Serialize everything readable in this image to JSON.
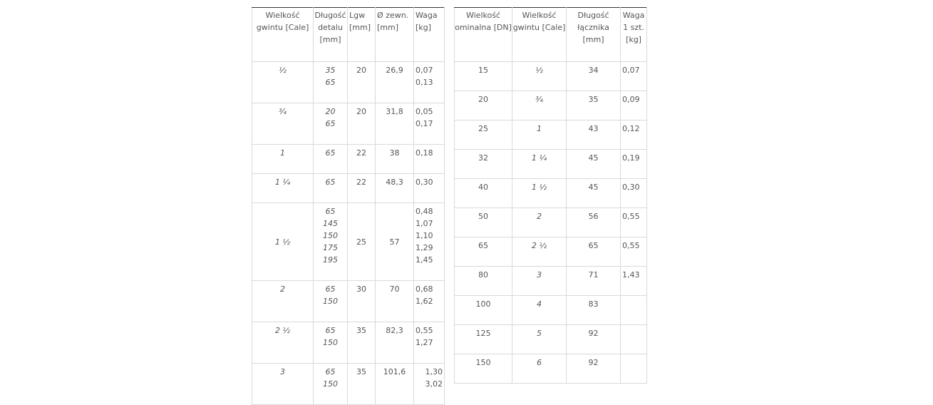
{
  "table1": {
    "headers": [
      "Wielkość gwintu [Cale]",
      "Długość detalu [mm]",
      "Lgw [mm]",
      "Ø zewn. [mm]",
      "Waga [kg]"
    ],
    "rows": [
      {
        "size": "½",
        "lengths": [
          "35",
          "65"
        ],
        "lgw": "20",
        "od": "26,9",
        "weights": [
          "0,07",
          "0,13"
        ]
      },
      {
        "size": "¾",
        "lengths": [
          "20",
          "65"
        ],
        "lgw": "20",
        "od": "31,8",
        "weights": [
          "0,05",
          "0,17"
        ]
      },
      {
        "size": "1",
        "lengths": [
          "65"
        ],
        "lgw": "22",
        "od": "38",
        "weights": [
          "0,18"
        ]
      },
      {
        "size": "1 ¼",
        "lengths": [
          "65"
        ],
        "lgw": "22",
        "od": "48,3",
        "weights": [
          "0,30"
        ]
      },
      {
        "size": "1 ½",
        "lengths": [
          "65",
          "145",
          "150",
          "175",
          "195"
        ],
        "lgw": "25",
        "od": "57",
        "weights": [
          "0,48",
          "1,07",
          "1,10",
          "1,29",
          "1,45"
        ]
      },
      {
        "size": "2",
        "lengths": [
          "65",
          "150"
        ],
        "lgw": "30",
        "od": "70",
        "weights": [
          "0,68",
          "1,62"
        ]
      },
      {
        "size": "2 ½",
        "lengths": [
          "65",
          "150"
        ],
        "lgw": "35",
        "od": "82,3",
        "weights": [
          "0,55",
          "1,27"
        ]
      },
      {
        "size": "3",
        "lengths": [
          "65",
          "150"
        ],
        "lgw": "35",
        "od": "101,6",
        "weights": [
          "1,30",
          "3,02"
        ]
      }
    ]
  },
  "table2": {
    "headers": [
      "Wielkość ominalna [DN]",
      "Wielkość gwintu [Cale]",
      "Długość łącznika [mm]",
      "Waga 1 szt. [kg]"
    ],
    "rows": [
      {
        "dn": "15",
        "size": "½",
        "length": "34",
        "weight": "0,07"
      },
      {
        "dn": "20",
        "size": "¾",
        "length": "35",
        "weight": "0,09"
      },
      {
        "dn": "25",
        "size": "1",
        "length": "43",
        "weight": "0,12"
      },
      {
        "dn": "32",
        "size": "1 ¼",
        "length": "45",
        "weight": "0,19"
      },
      {
        "dn": "40",
        "size": "1 ½",
        "length": "45",
        "weight": "0,30"
      },
      {
        "dn": "50",
        "size": "2",
        "length": "56",
        "weight": "0,55"
      },
      {
        "dn": "65",
        "size": "2 ½",
        "length": "65",
        "weight": "0,55"
      },
      {
        "dn": "80",
        "size": "3",
        "length": "71",
        "weight": "1,43"
      },
      {
        "dn": "100",
        "size": "4",
        "length": "83",
        "weight": ""
      },
      {
        "dn": "125",
        "size": "5",
        "length": "92",
        "weight": ""
      },
      {
        "dn": "150",
        "size": "6",
        "length": "92",
        "weight": ""
      }
    ]
  }
}
